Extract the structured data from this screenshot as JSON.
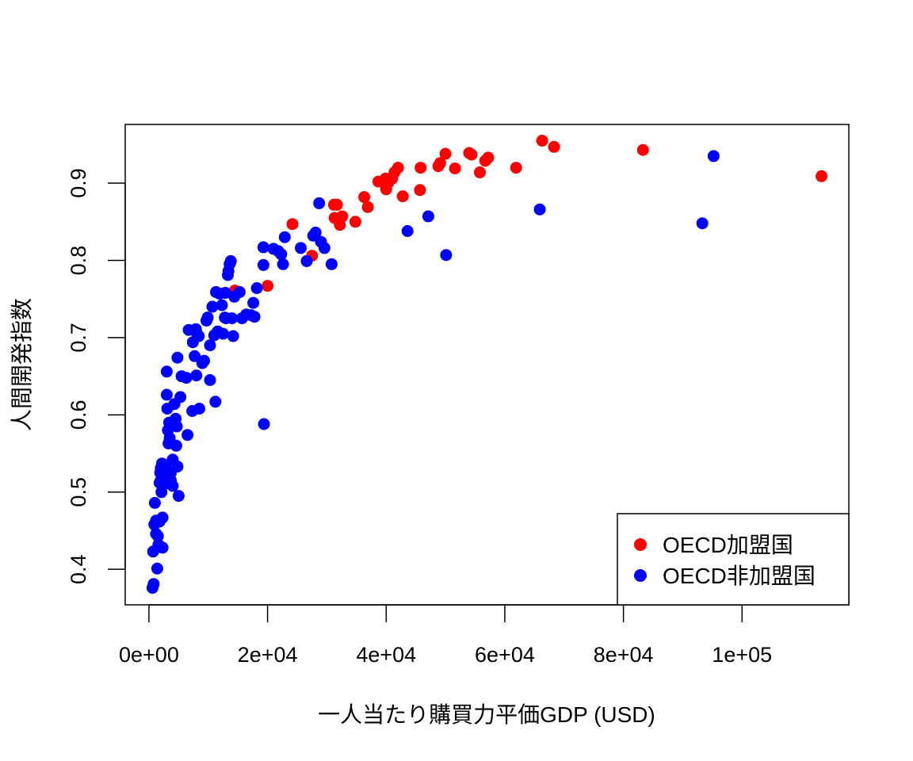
{
  "chart_data": {
    "type": "scatter",
    "title": "",
    "xlabel": "一人当たり購買力平価GDP (USD)",
    "ylabel": "人間開発指数",
    "xlim": [
      -4000,
      118000
    ],
    "ylim": [
      0.354,
      0.976
    ],
    "x_ticks": [
      0,
      20000,
      40000,
      60000,
      80000,
      100000
    ],
    "x_tick_labels": [
      "0e+00",
      "2e+04",
      "4e+04",
      "6e+04",
      "8e+04",
      "1e+05"
    ],
    "y_ticks": [
      0.4,
      0.5,
      0.6,
      0.7,
      0.8,
      0.9
    ],
    "y_tick_labels": [
      "0.4",
      "0.5",
      "0.6",
      "0.7",
      "0.8",
      "0.9"
    ],
    "grid": false,
    "legend_position": "bottom-right",
    "series": [
      {
        "name": "OECD加盟国",
        "color": "#ff0000",
        "points": [
          [
            14500,
            0.761
          ],
          [
            20000,
            0.767
          ],
          [
            24200,
            0.847
          ],
          [
            27500,
            0.806
          ],
          [
            31200,
            0.872
          ],
          [
            31700,
            0.872
          ],
          [
            31300,
            0.855
          ],
          [
            32200,
            0.846
          ],
          [
            32600,
            0.857
          ],
          [
            34800,
            0.85
          ],
          [
            36300,
            0.882
          ],
          [
            36900,
            0.869
          ],
          [
            38700,
            0.902
          ],
          [
            39900,
            0.906
          ],
          [
            40000,
            0.892
          ],
          [
            40400,
            0.901
          ],
          [
            41000,
            0.906
          ],
          [
            41400,
            0.914
          ],
          [
            42000,
            0.92
          ],
          [
            42800,
            0.883
          ],
          [
            45700,
            0.891
          ],
          [
            45800,
            0.92
          ],
          [
            48800,
            0.922
          ],
          [
            49100,
            0.926
          ],
          [
            50000,
            0.938
          ],
          [
            51600,
            0.919
          ],
          [
            54000,
            0.939
          ],
          [
            54400,
            0.937
          ],
          [
            55800,
            0.914
          ],
          [
            56700,
            0.929
          ],
          [
            57200,
            0.933
          ],
          [
            61900,
            0.92
          ],
          [
            66300,
            0.955
          ],
          [
            68300,
            0.947
          ],
          [
            83300,
            0.943
          ],
          [
            113400,
            0.909
          ]
        ]
      },
      {
        "name": "OECD非加盟国",
        "color": "#0000ff",
        "points": [
          [
            600,
            0.376
          ],
          [
            800,
            0.381
          ],
          [
            700,
            0.423
          ],
          [
            900,
            0.458
          ],
          [
            1000,
            0.486
          ],
          [
            1200,
            0.463
          ],
          [
            1200,
            0.446
          ],
          [
            1400,
            0.401
          ],
          [
            1500,
            0.443
          ],
          [
            1600,
            0.432
          ],
          [
            1800,
            0.462
          ],
          [
            1800,
            0.512
          ],
          [
            1900,
            0.525
          ],
          [
            2000,
            0.531
          ],
          [
            2000,
            0.515
          ],
          [
            2100,
            0.5
          ],
          [
            2200,
            0.537
          ],
          [
            2300,
            0.428
          ],
          [
            2300,
            0.467
          ],
          [
            2500,
            0.51
          ],
          [
            2600,
            0.525
          ],
          [
            2700,
            0.52
          ],
          [
            2800,
            0.535
          ],
          [
            3000,
            0.626
          ],
          [
            3000,
            0.656
          ],
          [
            3100,
            0.608
          ],
          [
            3200,
            0.58
          ],
          [
            3300,
            0.563
          ],
          [
            3400,
            0.59
          ],
          [
            3500,
            0.57
          ],
          [
            3700,
            0.515
          ],
          [
            3700,
            0.525
          ],
          [
            3800,
            0.59
          ],
          [
            4000,
            0.542
          ],
          [
            4000,
            0.508
          ],
          [
            4300,
            0.614
          ],
          [
            4500,
            0.595
          ],
          [
            4600,
            0.56
          ],
          [
            4700,
            0.585
          ],
          [
            4800,
            0.533
          ],
          [
            4800,
            0.674
          ],
          [
            5000,
            0.495
          ],
          [
            5300,
            0.623
          ],
          [
            5500,
            0.65
          ],
          [
            6300,
            0.648
          ],
          [
            6500,
            0.574
          ],
          [
            6700,
            0.71
          ],
          [
            7300,
            0.605
          ],
          [
            7400,
            0.694
          ],
          [
            7700,
            0.676
          ],
          [
            7900,
            0.711
          ],
          [
            8000,
            0.707
          ],
          [
            8000,
            0.651
          ],
          [
            8400,
            0.702
          ],
          [
            8500,
            0.608
          ],
          [
            9000,
            0.667
          ],
          [
            9300,
            0.67
          ],
          [
            9700,
            0.722
          ],
          [
            9900,
            0.726
          ],
          [
            10300,
            0.645
          ],
          [
            10300,
            0.69
          ],
          [
            10700,
            0.74
          ],
          [
            11000,
            0.703
          ],
          [
            11200,
            0.617
          ],
          [
            11300,
            0.759
          ],
          [
            11600,
            0.708
          ],
          [
            11900,
            0.757
          ],
          [
            12300,
            0.742
          ],
          [
            12500,
            0.705
          ],
          [
            12800,
            0.726
          ],
          [
            12900,
            0.758
          ],
          [
            13000,
            0.725
          ],
          [
            13300,
            0.781
          ],
          [
            13400,
            0.786
          ],
          [
            13600,
            0.795
          ],
          [
            13800,
            0.799
          ],
          [
            14000,
            0.725
          ],
          [
            14200,
            0.702
          ],
          [
            14400,
            0.753
          ],
          [
            15300,
            0.759
          ],
          [
            15700,
            0.725
          ],
          [
            16400,
            0.73
          ],
          [
            17200,
            0.729
          ],
          [
            17600,
            0.745
          ],
          [
            17800,
            0.727
          ],
          [
            18200,
            0.764
          ],
          [
            19300,
            0.794
          ],
          [
            19300,
            0.817
          ],
          [
            19400,
            0.588
          ],
          [
            21000,
            0.815
          ],
          [
            21800,
            0.812
          ],
          [
            22300,
            0.808
          ],
          [
            22600,
            0.795
          ],
          [
            22900,
            0.83
          ],
          [
            25600,
            0.816
          ],
          [
            26600,
            0.799
          ],
          [
            27700,
            0.832
          ],
          [
            28100,
            0.836
          ],
          [
            28700,
            0.874
          ],
          [
            29000,
            0.824
          ],
          [
            29600,
            0.816
          ],
          [
            30800,
            0.795
          ],
          [
            43600,
            0.838
          ],
          [
            47100,
            0.857
          ],
          [
            50100,
            0.807
          ],
          [
            65900,
            0.866
          ],
          [
            93300,
            0.848
          ],
          [
            95200,
            0.935
          ]
        ]
      }
    ]
  }
}
